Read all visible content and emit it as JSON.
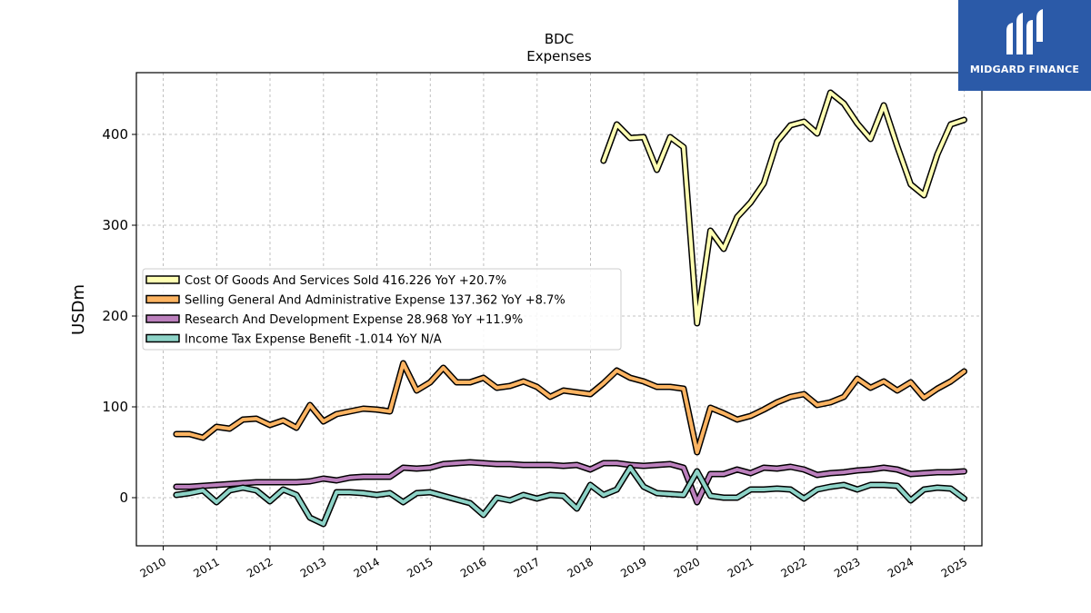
{
  "chart_data": {
    "type": "line",
    "title": "BDC",
    "subtitle": "Expenses",
    "xlabel": "",
    "ylabel": "USDm",
    "xlim": [
      "2009-07-01",
      "2025-05-01"
    ],
    "ylim": [
      -53,
      468
    ],
    "x_ticks": [
      "2010",
      "2011",
      "2012",
      "2013",
      "2014",
      "2015",
      "2016",
      "2017",
      "2018",
      "2019",
      "2020",
      "2021",
      "2022",
      "2023",
      "2024",
      "2025"
    ],
    "y_ticks": [
      0,
      100,
      200,
      300,
      400
    ],
    "grid": true,
    "legend_position": "center-left",
    "series": [
      {
        "name": "Cost Of Goods And Services Sold",
        "legend_label": "Cost Of Goods And Services Sold  416.226 YoY +20.7%",
        "color": "#ffffb3",
        "points": [
          [
            "2018-03-31",
            371
          ],
          [
            "2018-06-30",
            411
          ],
          [
            "2018-09-30",
            396
          ],
          [
            "2018-12-31",
            397
          ],
          [
            "2019-03-31",
            361
          ],
          [
            "2019-06-30",
            397
          ],
          [
            "2019-09-30",
            386
          ],
          [
            "2019-12-31",
            192
          ],
          [
            "2020-03-31",
            294
          ],
          [
            "2020-06-30",
            274
          ],
          [
            "2020-09-30",
            309
          ],
          [
            "2020-12-31",
            325
          ],
          [
            "2021-03-31",
            346
          ],
          [
            "2021-06-30",
            392
          ],
          [
            "2021-09-30",
            410
          ],
          [
            "2021-12-31",
            414
          ],
          [
            "2022-03-31",
            401
          ],
          [
            "2022-06-30",
            446
          ],
          [
            "2022-09-30",
            434
          ],
          [
            "2022-12-31",
            412
          ],
          [
            "2023-03-31",
            395
          ],
          [
            "2023-06-30",
            432
          ],
          [
            "2023-09-30",
            387
          ],
          [
            "2023-12-31",
            345
          ],
          [
            "2024-03-31",
            333
          ],
          [
            "2024-06-30",
            378
          ],
          [
            "2024-09-30",
            411
          ],
          [
            "2024-12-31",
            416
          ]
        ]
      },
      {
        "name": "Selling General And Administrative Expense",
        "legend_label": "Selling General And Administrative Expense  137.362 YoY +8.7%",
        "color": "#fdb462",
        "points": [
          [
            "2010-03-31",
            70
          ],
          [
            "2010-06-30",
            70
          ],
          [
            "2010-09-30",
            66
          ],
          [
            "2010-12-31",
            78
          ],
          [
            "2011-03-31",
            76
          ],
          [
            "2011-06-30",
            86
          ],
          [
            "2011-09-30",
            87
          ],
          [
            "2011-12-31",
            80
          ],
          [
            "2012-03-31",
            85
          ],
          [
            "2012-06-30",
            77
          ],
          [
            "2012-09-30",
            102
          ],
          [
            "2012-12-31",
            84
          ],
          [
            "2013-03-31",
            92
          ],
          [
            "2013-06-30",
            95
          ],
          [
            "2013-09-30",
            98
          ],
          [
            "2013-12-31",
            97
          ],
          [
            "2014-03-31",
            95
          ],
          [
            "2014-06-30",
            148
          ],
          [
            "2014-09-30",
            118
          ],
          [
            "2014-12-31",
            127
          ],
          [
            "2015-03-31",
            143
          ],
          [
            "2015-06-30",
            127
          ],
          [
            "2015-09-30",
            127
          ],
          [
            "2015-12-31",
            132
          ],
          [
            "2016-03-31",
            121
          ],
          [
            "2016-06-30",
            123
          ],
          [
            "2016-09-30",
            128
          ],
          [
            "2016-12-31",
            122
          ],
          [
            "2017-03-31",
            111
          ],
          [
            "2017-06-30",
            118
          ],
          [
            "2017-09-30",
            116
          ],
          [
            "2017-12-31",
            114
          ],
          [
            "2018-03-31",
            126
          ],
          [
            "2018-06-30",
            140
          ],
          [
            "2018-09-30",
            132
          ],
          [
            "2018-12-31",
            128
          ],
          [
            "2019-03-31",
            122
          ],
          [
            "2019-06-30",
            122
          ],
          [
            "2019-09-30",
            120
          ],
          [
            "2019-12-31",
            50
          ],
          [
            "2020-03-31",
            99
          ],
          [
            "2020-06-30",
            93
          ],
          [
            "2020-09-30",
            86
          ],
          [
            "2020-12-31",
            90
          ],
          [
            "2021-03-31",
            97
          ],
          [
            "2021-06-30",
            105
          ],
          [
            "2021-09-30",
            111
          ],
          [
            "2021-12-31",
            114
          ],
          [
            "2022-03-31",
            102
          ],
          [
            "2022-06-30",
            105
          ],
          [
            "2022-09-30",
            111
          ],
          [
            "2022-12-31",
            131
          ],
          [
            "2023-03-31",
            121
          ],
          [
            "2023-06-30",
            128
          ],
          [
            "2023-09-30",
            118
          ],
          [
            "2023-12-31",
            127
          ],
          [
            "2024-03-31",
            110
          ],
          [
            "2024-06-30",
            120
          ],
          [
            "2024-09-30",
            128
          ],
          [
            "2024-12-31",
            139
          ]
        ]
      },
      {
        "name": "Research And Development Expense",
        "legend_label": "Research And Development Expense  28.968 YoY +11.9%",
        "color": "#bc80bd",
        "points": [
          [
            "2010-03-31",
            12
          ],
          [
            "2010-06-30",
            12
          ],
          [
            "2010-09-30",
            13
          ],
          [
            "2010-12-31",
            14
          ],
          [
            "2011-03-31",
            15
          ],
          [
            "2011-06-30",
            16
          ],
          [
            "2011-09-30",
            17
          ],
          [
            "2011-12-31",
            17
          ],
          [
            "2012-03-31",
            17
          ],
          [
            "2012-06-30",
            17
          ],
          [
            "2012-09-30",
            18
          ],
          [
            "2012-12-31",
            21
          ],
          [
            "2013-03-31",
            19
          ],
          [
            "2013-06-30",
            22
          ],
          [
            "2013-09-30",
            23
          ],
          [
            "2013-12-31",
            23
          ],
          [
            "2014-03-31",
            23
          ],
          [
            "2014-06-30",
            33
          ],
          [
            "2014-09-30",
            32
          ],
          [
            "2014-12-31",
            33
          ],
          [
            "2015-03-31",
            37
          ],
          [
            "2015-06-30",
            38
          ],
          [
            "2015-09-30",
            39
          ],
          [
            "2015-12-31",
            38
          ],
          [
            "2016-03-31",
            37
          ],
          [
            "2016-06-30",
            37
          ],
          [
            "2016-09-30",
            36
          ],
          [
            "2016-12-31",
            36
          ],
          [
            "2017-03-31",
            36
          ],
          [
            "2017-06-30",
            35
          ],
          [
            "2017-09-30",
            36
          ],
          [
            "2017-12-31",
            31
          ],
          [
            "2018-03-31",
            38
          ],
          [
            "2018-06-30",
            38
          ],
          [
            "2018-09-30",
            36
          ],
          [
            "2018-12-31",
            35
          ],
          [
            "2019-03-31",
            36
          ],
          [
            "2019-06-30",
            37
          ],
          [
            "2019-09-30",
            33
          ],
          [
            "2019-12-31",
            -5
          ],
          [
            "2020-03-31",
            26
          ],
          [
            "2020-06-30",
            26
          ],
          [
            "2020-09-30",
            31
          ],
          [
            "2020-12-31",
            27
          ],
          [
            "2021-03-31",
            33
          ],
          [
            "2021-06-30",
            32
          ],
          [
            "2021-09-30",
            34
          ],
          [
            "2021-12-31",
            31
          ],
          [
            "2022-03-31",
            25
          ],
          [
            "2022-06-30",
            27
          ],
          [
            "2022-09-30",
            28
          ],
          [
            "2022-12-31",
            30
          ],
          [
            "2023-03-31",
            31
          ],
          [
            "2023-06-30",
            33
          ],
          [
            "2023-09-30",
            31
          ],
          [
            "2023-12-31",
            26
          ],
          [
            "2024-03-31",
            27
          ],
          [
            "2024-06-30",
            28
          ],
          [
            "2024-09-30",
            28
          ],
          [
            "2024-12-31",
            29
          ]
        ]
      },
      {
        "name": "Income Tax Expense Benefit",
        "legend_label": "Income Tax Expense Benefit  -1.014 YoY N/A",
        "color": "#8dd3c7",
        "points": [
          [
            "2010-03-31",
            3
          ],
          [
            "2010-06-30",
            5
          ],
          [
            "2010-09-30",
            8
          ],
          [
            "2010-12-31",
            -5
          ],
          [
            "2011-03-31",
            8
          ],
          [
            "2011-06-30",
            11
          ],
          [
            "2011-09-30",
            8
          ],
          [
            "2011-12-31",
            -4
          ],
          [
            "2012-03-31",
            9
          ],
          [
            "2012-06-30",
            3
          ],
          [
            "2012-09-30",
            -22
          ],
          [
            "2012-12-31",
            -29
          ],
          [
            "2013-03-31",
            6
          ],
          [
            "2013-06-30",
            6
          ],
          [
            "2013-09-30",
            5
          ],
          [
            "2013-12-31",
            3
          ],
          [
            "2014-03-31",
            5
          ],
          [
            "2014-06-30",
            -5
          ],
          [
            "2014-09-30",
            5
          ],
          [
            "2014-12-31",
            6
          ],
          [
            "2015-03-31",
            2
          ],
          [
            "2015-06-30",
            -2
          ],
          [
            "2015-09-30",
            -6
          ],
          [
            "2015-12-31",
            -19
          ],
          [
            "2016-03-31",
            0
          ],
          [
            "2016-06-30",
            -3
          ],
          [
            "2016-09-30",
            3
          ],
          [
            "2016-12-31",
            -1
          ],
          [
            "2017-03-31",
            3
          ],
          [
            "2017-06-30",
            2
          ],
          [
            "2017-09-30",
            -12
          ],
          [
            "2017-12-31",
            14
          ],
          [
            "2018-03-31",
            3
          ],
          [
            "2018-06-30",
            9
          ],
          [
            "2018-09-30",
            33
          ],
          [
            "2018-12-31",
            12
          ],
          [
            "2019-03-31",
            5
          ],
          [
            "2019-06-30",
            4
          ],
          [
            "2019-09-30",
            3
          ],
          [
            "2019-12-31",
            29
          ],
          [
            "2020-03-31",
            2
          ],
          [
            "2020-06-30",
            0
          ],
          [
            "2020-09-30",
            0
          ],
          [
            "2020-12-31",
            9
          ],
          [
            "2021-03-31",
            9
          ],
          [
            "2021-06-30",
            10
          ],
          [
            "2021-09-30",
            9
          ],
          [
            "2021-12-31",
            -1
          ],
          [
            "2022-03-31",
            9
          ],
          [
            "2022-06-30",
            12
          ],
          [
            "2022-09-30",
            14
          ],
          [
            "2022-12-31",
            9
          ],
          [
            "2023-03-31",
            14
          ],
          [
            "2023-06-30",
            14
          ],
          [
            "2023-09-30",
            13
          ],
          [
            "2023-12-31",
            -3
          ],
          [
            "2024-03-31",
            9
          ],
          [
            "2024-06-30",
            11
          ],
          [
            "2024-09-30",
            10
          ],
          [
            "2024-12-31",
            -1
          ]
        ]
      }
    ]
  },
  "logo": {
    "text": "MIDGARD FINANCE",
    "background": "#2b5aa8",
    "icon": "midgard-m-logo-icon"
  }
}
